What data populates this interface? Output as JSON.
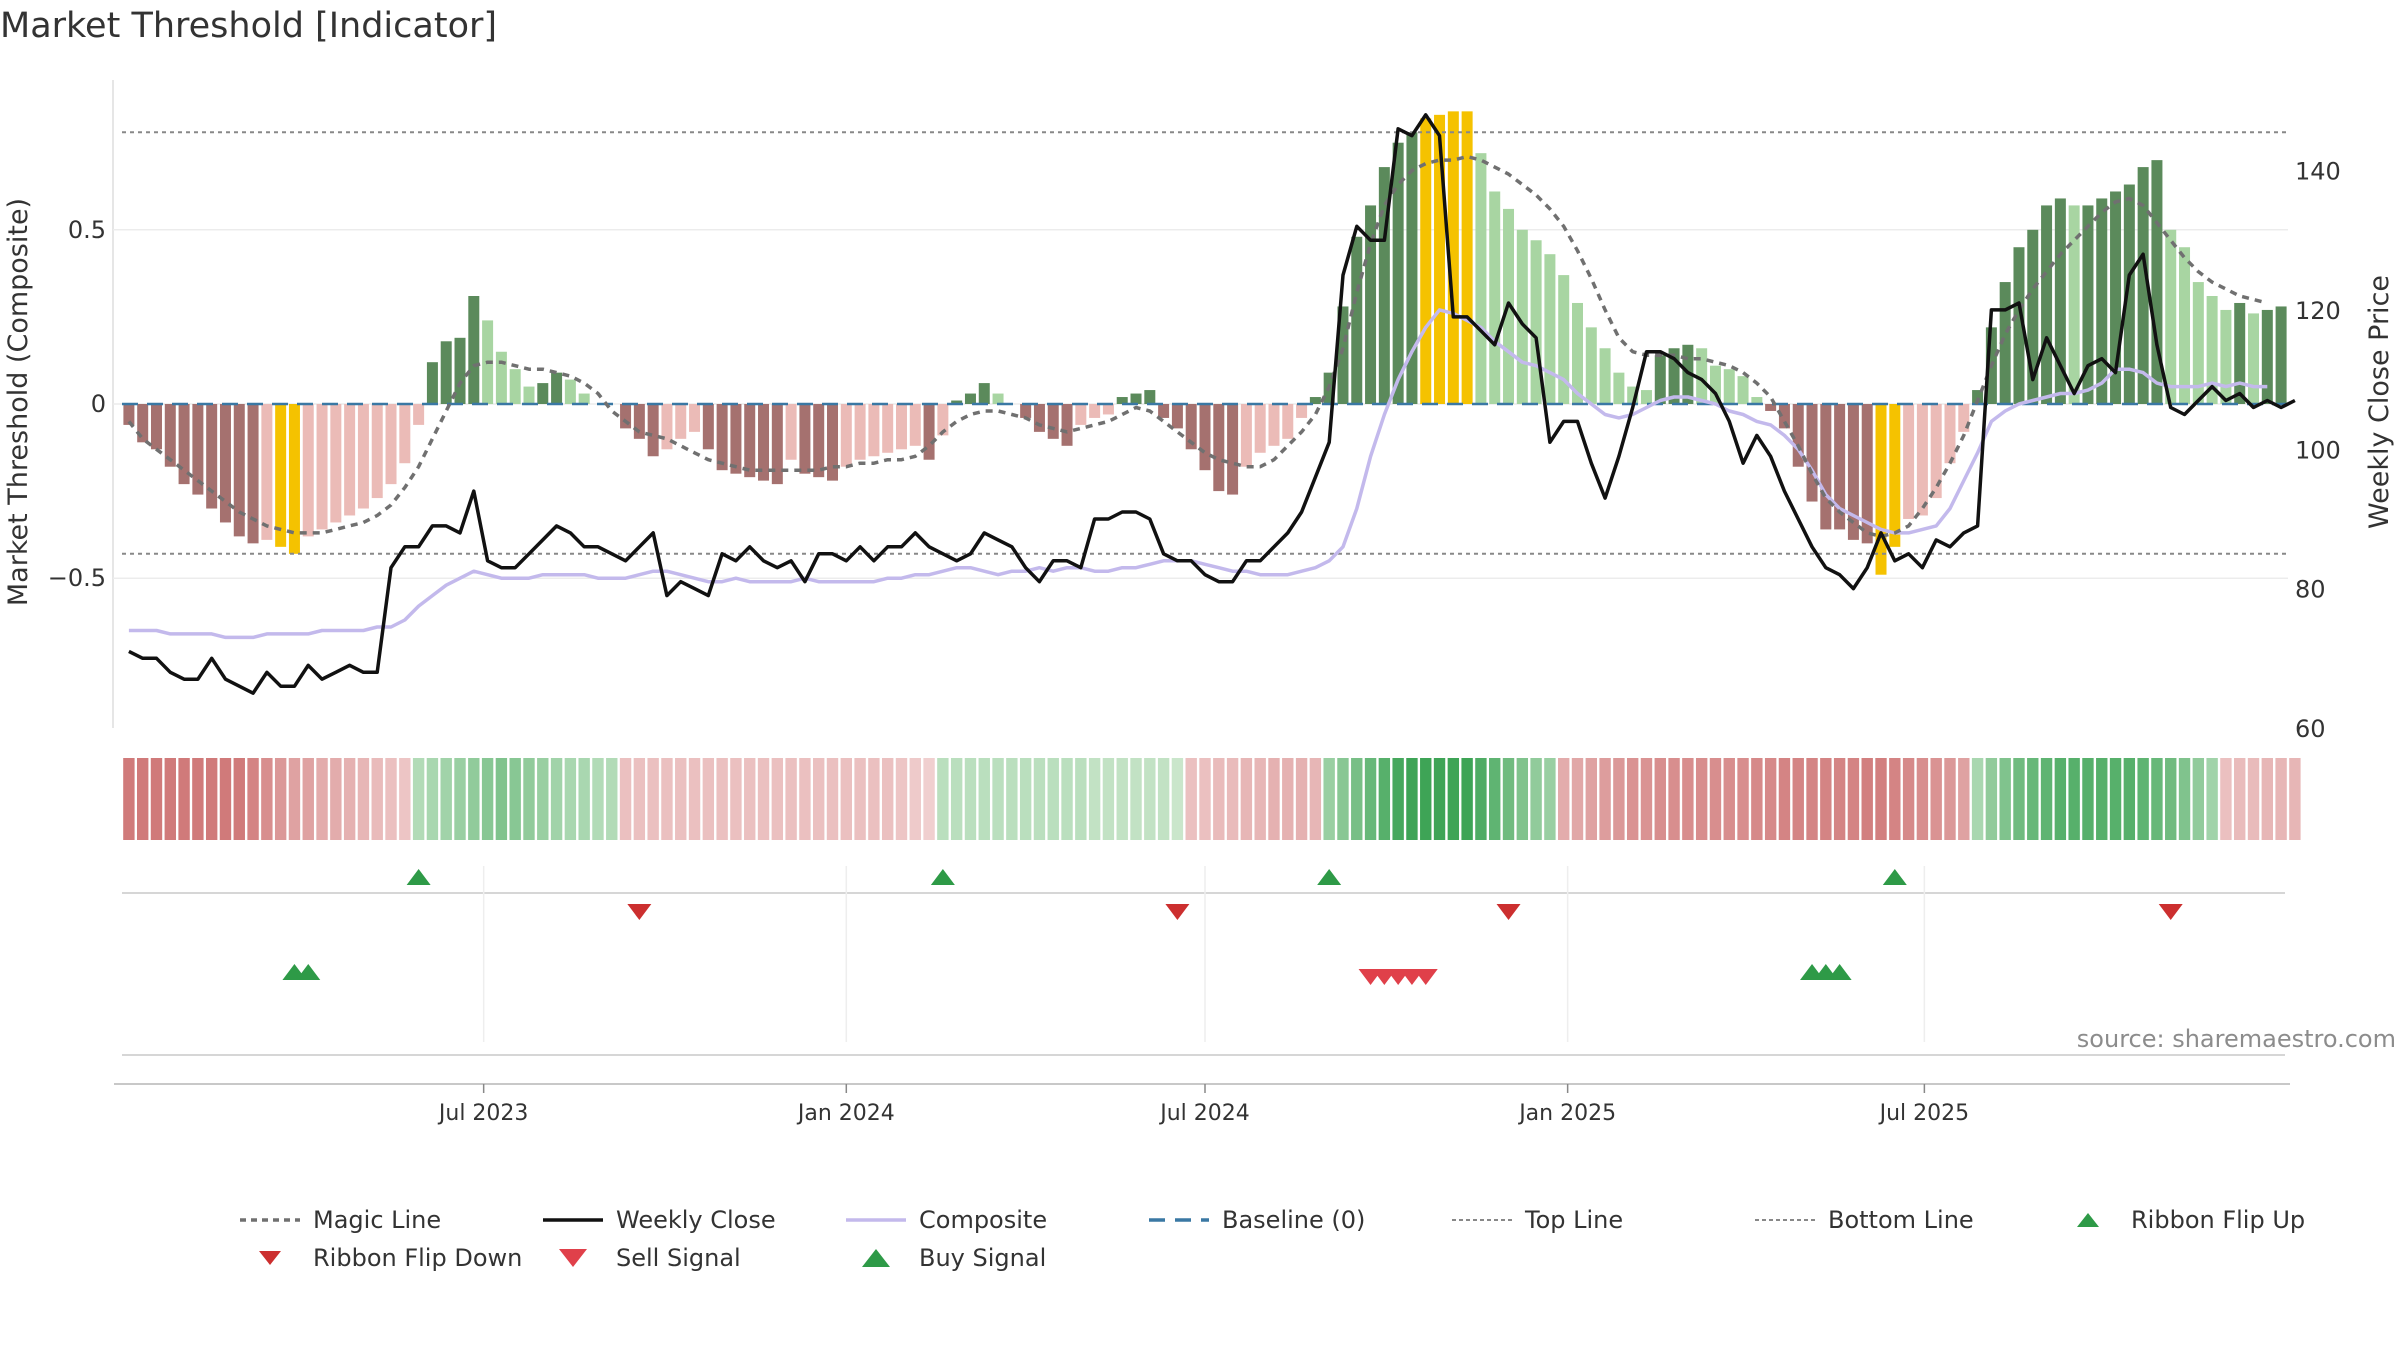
{
  "title": "Market Threshold [Indicator]",
  "source": "source: sharemaestro.com",
  "chart_data": {
    "type": "bar",
    "x_start": "2023-01-02",
    "interval_days": 7,
    "left_axis": {
      "label": "Market Threshold (Composite)",
      "ylim": [
        -0.93,
        0.93
      ],
      "ticks": [
        0.5,
        0,
        -0.5
      ],
      "tick_labels": [
        "0.5",
        "0",
        "−0.5"
      ]
    },
    "right_axis": {
      "label": "Weekly Close Price",
      "ylim": [
        60,
        153
      ],
      "ticks": [
        140,
        120,
        100,
        80,
        60
      ],
      "tick_labels": [
        "140",
        "120",
        "100",
        "80",
        "60"
      ]
    },
    "x_ticks": [
      {
        "date": "2023-07-01",
        "label": "Jul 2023"
      },
      {
        "date": "2024-01-01",
        "label": "Jan 2024"
      },
      {
        "date": "2024-07-01",
        "label": "Jul 2024"
      },
      {
        "date": "2025-01-01",
        "label": "Jan 2025"
      },
      {
        "date": "2025-07-01",
        "label": "Jul 2025"
      }
    ],
    "top_line": 0.78,
    "bottom_line": -0.43,
    "baseline": 0,
    "composite_bars": [
      -0.06,
      -0.11,
      -0.13,
      -0.18,
      -0.23,
      -0.26,
      -0.3,
      -0.34,
      -0.38,
      -0.4,
      -0.39,
      -0.41,
      -0.43,
      -0.38,
      -0.36,
      -0.34,
      -0.32,
      -0.3,
      -0.27,
      -0.23,
      -0.17,
      -0.06,
      0.12,
      0.18,
      0.19,
      0.31,
      0.24,
      0.15,
      0.1,
      0.05,
      0.06,
      0.09,
      0.07,
      0.03,
      0,
      0,
      -0.07,
      -0.1,
      -0.15,
      -0.13,
      -0.1,
      -0.08,
      -0.13,
      -0.19,
      -0.2,
      -0.21,
      -0.22,
      -0.23,
      -0.16,
      -0.2,
      -0.21,
      -0.22,
      -0.18,
      -0.16,
      -0.15,
      -0.14,
      -0.13,
      -0.12,
      -0.16,
      -0.09,
      0.01,
      0.03,
      0.06,
      0.03,
      0,
      -0.04,
      -0.08,
      -0.1,
      -0.12,
      -0.06,
      -0.04,
      -0.03,
      0.02,
      0.03,
      0.04,
      -0.04,
      -0.07,
      -0.13,
      -0.19,
      -0.25,
      -0.26,
      -0.18,
      -0.14,
      -0.12,
      -0.1,
      -0.04,
      0.02,
      0.09,
      0.28,
      0.48,
      0.57,
      0.68,
      0.75,
      0.78,
      0.82,
      0.83,
      0.84,
      0.84,
      0.72,
      0.61,
      0.56,
      0.5,
      0.47,
      0.43,
      0.37,
      0.29,
      0.22,
      0.16,
      0.09,
      0.05,
      0.04,
      0.14,
      0.16,
      0.17,
      0.16,
      0.11,
      0.1,
      0.08,
      0.02,
      -0.02,
      -0.07,
      -0.18,
      -0.28,
      -0.36,
      -0.36,
      -0.39,
      -0.4,
      -0.49,
      -0.41,
      -0.33,
      -0.32,
      -0.27,
      -0.17,
      -0.08,
      0.04,
      0.22,
      0.35,
      0.45,
      0.5,
      0.57,
      0.59,
      0.57,
      0.57,
      0.59,
      0.61,
      0.63,
      0.68,
      0.7,
      0.5,
      0.45,
      0.35,
      0.31,
      0.27,
      0.29,
      0.26,
      0.27,
      0.28
    ],
    "bar_colors": {
      "strong_up": "#5b8a5b",
      "weak_up": "#a8d5a2",
      "strong_down": "#a5716f",
      "weak_down": "#ebbbb7",
      "extreme": "#f5c200"
    },
    "weekly_close": [
      71,
      70,
      70,
      68,
      67,
      67,
      70,
      67,
      66,
      65,
      68,
      66,
      66,
      69,
      67,
      68,
      69,
      68,
      68,
      83,
      86,
      86,
      89,
      89,
      88,
      94,
      84,
      83,
      83,
      85,
      87,
      89,
      88,
      86,
      86,
      85,
      84,
      86,
      88,
      79,
      81,
      80,
      79,
      85,
      84,
      86,
      84,
      83,
      84,
      81,
      85,
      85,
      84,
      86,
      84,
      86,
      86,
      88,
      86,
      85,
      84,
      85,
      88,
      87,
      86,
      83,
      81,
      84,
      84,
      83,
      90,
      90,
      91,
      91,
      90,
      85,
      84,
      84,
      82,
      81,
      81,
      84,
      84,
      86,
      88,
      91,
      96,
      101,
      125,
      132,
      130,
      130,
      146,
      145,
      148,
      145,
      119,
      119,
      117,
      115,
      121,
      118,
      116,
      101,
      104,
      104,
      98,
      93,
      99,
      106,
      114,
      114,
      113,
      111,
      110,
      108,
      104,
      98,
      102,
      99,
      94,
      90,
      86,
      83,
      82,
      80,
      83,
      88,
      84,
      85,
      83,
      87,
      86,
      88,
      89,
      120,
      120,
      121,
      110,
      116,
      112,
      108,
      112,
      113,
      111,
      125,
      128,
      115,
      106,
      105,
      107,
      109,
      107,
      108,
      106,
      107,
      106,
      107
    ],
    "composite_line": [
      -0.65,
      -0.65,
      -0.65,
      -0.66,
      -0.66,
      -0.66,
      -0.66,
      -0.67,
      -0.67,
      -0.67,
      -0.66,
      -0.66,
      -0.66,
      -0.66,
      -0.65,
      -0.65,
      -0.65,
      -0.65,
      -0.64,
      -0.64,
      -0.62,
      -0.58,
      -0.55,
      -0.52,
      -0.5,
      -0.48,
      -0.49,
      -0.5,
      -0.5,
      -0.5,
      -0.49,
      -0.49,
      -0.49,
      -0.49,
      -0.5,
      -0.5,
      -0.5,
      -0.49,
      -0.48,
      -0.48,
      -0.49,
      -0.5,
      -0.51,
      -0.51,
      -0.5,
      -0.51,
      -0.51,
      -0.51,
      -0.51,
      -0.5,
      -0.51,
      -0.51,
      -0.51,
      -0.51,
      -0.51,
      -0.5,
      -0.5,
      -0.49,
      -0.49,
      -0.48,
      -0.47,
      -0.47,
      -0.48,
      -0.49,
      -0.48,
      -0.48,
      -0.47,
      -0.48,
      -0.47,
      -0.47,
      -0.48,
      -0.48,
      -0.47,
      -0.47,
      -0.46,
      -0.45,
      -0.45,
      -0.45,
      -0.46,
      -0.47,
      -0.48,
      -0.48,
      -0.49,
      -0.49,
      -0.49,
      -0.48,
      -0.47,
      -0.45,
      -0.41,
      -0.3,
      -0.15,
      -0.03,
      0.07,
      0.15,
      0.22,
      0.27,
      0.26,
      0.24,
      0.22,
      0.18,
      0.15,
      0.12,
      0.11,
      0.09,
      0.07,
      0.03,
      0.0,
      -0.03,
      -0.04,
      -0.03,
      -0.01,
      0.01,
      0.02,
      0.02,
      0.01,
      0.0,
      -0.02,
      -0.03,
      -0.05,
      -0.06,
      -0.09,
      -0.13,
      -0.19,
      -0.26,
      -0.3,
      -0.32,
      -0.34,
      -0.36,
      -0.37,
      -0.37,
      -0.36,
      -0.35,
      -0.3,
      -0.22,
      -0.14,
      -0.05,
      -0.02,
      0.0,
      0.01,
      0.02,
      0.03,
      0.03,
      0.04,
      0.06,
      0.1,
      0.1,
      0.09,
      0.06,
      0.05,
      0.05,
      0.05,
      0.06,
      0.05,
      0.06,
      0.05,
      0.05
    ],
    "magic_line": [
      -0.05,
      -0.1,
      -0.13,
      -0.16,
      -0.19,
      -0.22,
      -0.25,
      -0.28,
      -0.31,
      -0.33,
      -0.35,
      -0.36,
      -0.37,
      -0.37,
      -0.37,
      -0.36,
      -0.35,
      -0.34,
      -0.32,
      -0.29,
      -0.24,
      -0.18,
      -0.1,
      -0.02,
      0.06,
      0.11,
      0.12,
      0.12,
      0.11,
      0.1,
      0.1,
      0.09,
      0.08,
      0.06,
      0.03,
      -0.02,
      -0.05,
      -0.08,
      -0.09,
      -0.1,
      -0.12,
      -0.14,
      -0.16,
      -0.17,
      -0.18,
      -0.19,
      -0.19,
      -0.19,
      -0.19,
      -0.19,
      -0.19,
      -0.18,
      -0.18,
      -0.17,
      -0.17,
      -0.16,
      -0.16,
      -0.15,
      -0.12,
      -0.08,
      -0.05,
      -0.03,
      -0.02,
      -0.02,
      -0.03,
      -0.04,
      -0.06,
      -0.07,
      -0.08,
      -0.07,
      -0.06,
      -0.05,
      -0.03,
      -0.01,
      -0.02,
      -0.05,
      -0.08,
      -0.11,
      -0.14,
      -0.16,
      -0.17,
      -0.18,
      -0.18,
      -0.16,
      -0.12,
      -0.08,
      -0.03,
      0.05,
      0.16,
      0.32,
      0.46,
      0.57,
      0.63,
      0.67,
      0.69,
      0.7,
      0.7,
      0.71,
      0.7,
      0.68,
      0.66,
      0.63,
      0.6,
      0.56,
      0.51,
      0.44,
      0.36,
      0.27,
      0.19,
      0.15,
      0.14,
      0.14,
      0.14,
      0.13,
      0.13,
      0.12,
      0.11,
      0.09,
      0.06,
      0.02,
      -0.05,
      -0.12,
      -0.2,
      -0.27,
      -0.31,
      -0.34,
      -0.37,
      -0.38,
      -0.37,
      -0.35,
      -0.3,
      -0.24,
      -0.17,
      -0.09,
      0.01,
      0.11,
      0.2,
      0.27,
      0.33,
      0.38,
      0.43,
      0.47,
      0.51,
      0.55,
      0.58,
      0.59,
      0.57,
      0.52,
      0.47,
      0.42,
      0.38,
      0.35,
      0.33,
      0.31,
      0.3,
      0.29
    ],
    "ribbon": [
      -1.0,
      -1.0,
      -1.0,
      -1.0,
      -1.0,
      -1.0,
      -1.0,
      -1.0,
      -1.0,
      -0.9,
      -0.8,
      -0.7,
      -0.6,
      -0.6,
      -0.5,
      -0.5,
      -0.45,
      -0.4,
      -0.35,
      -0.3,
      -0.25,
      0.3,
      0.35,
      0.4,
      0.45,
      0.5,
      0.55,
      0.6,
      0.55,
      0.5,
      0.45,
      0.4,
      0.35,
      0.35,
      0.3,
      0.3,
      -0.3,
      -0.3,
      -0.3,
      -0.3,
      -0.3,
      -0.3,
      -0.3,
      -0.3,
      -0.3,
      -0.3,
      -0.3,
      -0.3,
      -0.3,
      -0.3,
      -0.3,
      -0.3,
      -0.3,
      -0.3,
      -0.3,
      -0.3,
      -0.25,
      -0.2,
      -0.15,
      0.25,
      0.25,
      0.25,
      0.25,
      0.25,
      0.25,
      0.25,
      0.25,
      0.25,
      0.25,
      0.25,
      0.2,
      0.2,
      0.2,
      0.2,
      0.2,
      0.2,
      0.15,
      -0.3,
      -0.3,
      -0.35,
      -0.35,
      -0.4,
      -0.4,
      -0.45,
      -0.45,
      -0.45,
      -0.4,
      0.45,
      0.55,
      0.65,
      0.75,
      0.85,
      0.95,
      1.0,
      1.0,
      1.0,
      1.0,
      1.0,
      0.9,
      0.8,
      0.7,
      0.6,
      0.5,
      0.45,
      -0.5,
      -0.55,
      -0.6,
      -0.65,
      -0.7,
      -0.75,
      -0.75,
      -0.8,
      -0.8,
      -0.8,
      -0.8,
      -0.8,
      -0.8,
      -0.8,
      -0.85,
      -0.85,
      -0.9,
      -0.9,
      -0.9,
      -0.9,
      -0.9,
      -0.9,
      -0.95,
      -0.95,
      -0.9,
      -0.85,
      -0.8,
      -0.75,
      -0.7,
      -0.6,
      0.35,
      0.5,
      0.6,
      0.7,
      0.75,
      0.8,
      0.85,
      0.85,
      0.85,
      0.85,
      0.85,
      0.85,
      0.8,
      0.75,
      0.7,
      0.6,
      0.5,
      0.4,
      -0.3,
      -0.35,
      -0.35,
      -0.4,
      -0.4,
      -0.4
    ],
    "ribbon_flip_up": [
      21,
      59,
      87,
      128
    ],
    "ribbon_flip_down": [
      37,
      76,
      100,
      148
    ],
    "buy_signal": [
      12,
      13,
      122,
      123,
      124
    ],
    "sell_signal": [
      90,
      91,
      92,
      93,
      94
    ]
  },
  "legend": [
    {
      "label": "Magic Line",
      "symbol": "dotted-line",
      "color": "#707070"
    },
    {
      "label": "Weekly Close",
      "symbol": "solid-line",
      "color": "#111111"
    },
    {
      "label": "Composite",
      "symbol": "solid-line",
      "color": "#c3b9ec"
    },
    {
      "label": "Baseline (0)",
      "symbol": "dashed-line",
      "color": "#3a78a4"
    },
    {
      "label": "Top Line",
      "symbol": "fine-dotted-line",
      "color": "#888888"
    },
    {
      "label": "Bottom Line",
      "symbol": "fine-dotted-line",
      "color": "#888888"
    },
    {
      "label": "Ribbon Flip Up",
      "symbol": "triangle-up",
      "color": "#2e9a47"
    },
    {
      "label": "Ribbon Flip Down",
      "symbol": "triangle-down",
      "color": "#cc2f2f"
    },
    {
      "label": "Sell Signal",
      "symbol": "triangle-down",
      "color": "#e0404a"
    },
    {
      "label": "Buy Signal",
      "symbol": "triangle-up",
      "color": "#2e9a47"
    }
  ]
}
